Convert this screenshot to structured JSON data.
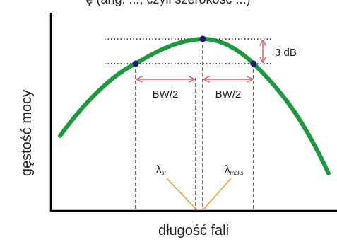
{
  "header_cut_text": "ę (ang. ..., czyli szerokość ...)",
  "y_axis_label": "gęstość mocy",
  "x_axis_label": "długość fali",
  "db_label": "3 dB",
  "bw_left_label": "BW/2",
  "bw_right_label": "BW/2",
  "lambda_sr": {
    "base": "λ",
    "sub": "śr"
  },
  "lambda_maks": {
    "base": "λ",
    "sub": "maks"
  },
  "colors": {
    "curve": "#1a9a3c",
    "point": "#1a1a6e",
    "arrow_red": "#e06060",
    "arrow_orange": "#f0a030",
    "axis": "#000000",
    "guide": "#222222"
  }
}
